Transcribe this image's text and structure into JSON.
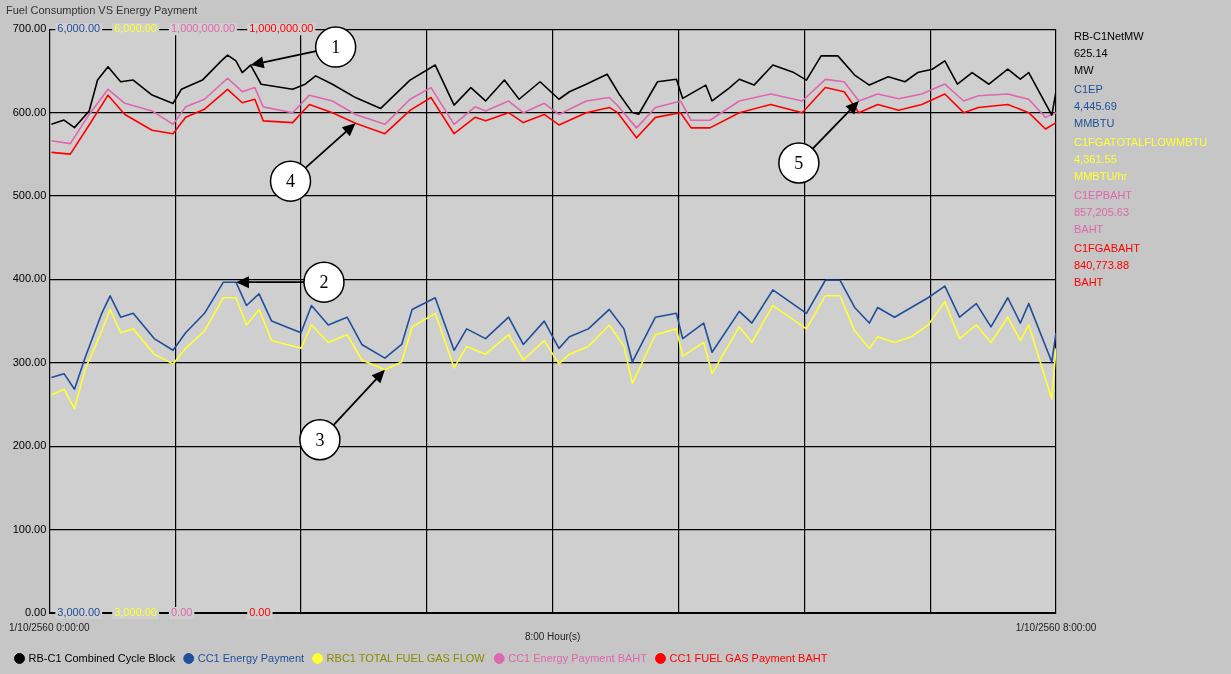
{
  "chart_data": {
    "type": "line",
    "title": "Fuel Consumption VS Energy Payment",
    "xlabel": "8:00 Hour(s)",
    "xlim": [
      "2560-10-01T00:00",
      "2560-10-01T08:00"
    ],
    "xticks": [
      {
        "value": "2560-10-01T00:00",
        "label": "1/10/2560 0:00:00"
      },
      {
        "value": "2560-10-01T01:00",
        "label": null
      },
      {
        "value": "2560-10-01T02:00",
        "label": null
      },
      {
        "value": "2560-10-01T03:00",
        "label": null
      },
      {
        "value": "2560-10-01T04:00",
        "label": null
      },
      {
        "value": "2560-10-01T05:00",
        "label": null
      },
      {
        "value": "2560-10-01T06:00",
        "label": null
      },
      {
        "value": "2560-10-01T07:00",
        "label": null
      },
      {
        "value": "2560-10-01T08:00",
        "label": "1/10/2560 8:00:00"
      }
    ],
    "ylim": [
      0,
      700
    ],
    "yticks": [
      {
        "value": 0,
        "label": "0.00"
      },
      {
        "value": 100,
        "label": "100.00"
      },
      {
        "value": 200,
        "label": "200.00"
      },
      {
        "value": 300,
        "label": "300.00"
      },
      {
        "value": 400,
        "label": "400.00"
      },
      {
        "value": 500,
        "label": "500.00"
      },
      {
        "value": 600,
        "label": "600.00"
      },
      {
        "value": 700,
        "label": "700.00"
      }
    ],
    "y2lim": [
      3000,
      6000
    ],
    "y2ticks": [
      {
        "value": 3000,
        "label": "3,000.00"
      },
      {
        "value": 6000,
        "label": "6,000.00"
      }
    ],
    "y3lim": [
      0,
      1000000
    ],
    "y3ticks": [
      {
        "value": 0,
        "label": "0.00"
      },
      {
        "value": 1000000,
        "label": "1,000,000.00"
      }
    ],
    "grid": true,
    "legend": "bottom",
    "series": [
      {
        "name": "RB-C1 Combined Cycle Block",
        "color": "#000000",
        "x": [
          "2560-10-01T00:01",
          "2560-10-01T00:07",
          "2560-10-01T00:12",
          "2560-10-01T00:19",
          "2560-10-01T00:23",
          "2560-10-01T00:28",
          "2560-10-01T00:34",
          "2560-10-01T00:40",
          "2560-10-01T00:49",
          "2560-10-01T00:59",
          "2560-10-01T01:03",
          "2560-10-01T01:13",
          "2560-10-01T01:22",
          "2560-10-01T01:25",
          "2560-10-01T01:29",
          "2560-10-01T01:32",
          "2560-10-01T01:36",
          "2560-10-01T01:41",
          "2560-10-01T01:56",
          "2560-10-01T02:02",
          "2560-10-01T02:07",
          "2560-10-01T02:15",
          "2560-10-01T02:26",
          "2560-10-01T02:38",
          "2560-10-01T02:52",
          "2560-10-01T03:04",
          "2560-10-01T03:13",
          "2560-10-01T03:21",
          "2560-10-01T03:28",
          "2560-10-01T03:37",
          "2560-10-01T03:44",
          "2560-10-01T03:54",
          "2560-10-01T04:03",
          "2560-10-01T04:08",
          "2560-10-01T04:16",
          "2560-10-01T04:26",
          "2560-10-01T04:32",
          "2560-10-01T04:38",
          "2560-10-01T04:41",
          "2560-10-01T04:50",
          "2560-10-01T04:59",
          "2560-10-01T05:02",
          "2560-10-01T05:13",
          "2560-10-01T05:16",
          "2560-10-01T05:24",
          "2560-10-01T05:29",
          "2560-10-01T05:36",
          "2560-10-01T05:45",
          "2560-10-01T05:55",
          "2560-10-01T06:01",
          "2560-10-01T06:08",
          "2560-10-01T06:16",
          "2560-10-01T06:24",
          "2560-10-01T06:31",
          "2560-10-01T06:40",
          "2560-10-01T06:48",
          "2560-10-01T06:54",
          "2560-10-01T07:01",
          "2560-10-01T07:07",
          "2560-10-01T07:13",
          "2560-10-01T07:20",
          "2560-10-01T07:28",
          "2560-10-01T07:37",
          "2560-10-01T07:43",
          "2560-10-01T07:47",
          "2560-10-01T07:58",
          "2560-10-01T08:00"
        ],
        "values": [
          586,
          591,
          582,
          602,
          639,
          655,
          637,
          639,
          621,
          611,
          628,
          639,
          662,
          669,
          662,
          648,
          657,
          634,
          628,
          634,
          644,
          634,
          618,
          605,
          639,
          657,
          609,
          630,
          614,
          639,
          616,
          637,
          616,
          625,
          634,
          646,
          621,
          600,
          598,
          637,
          640,
          617,
          633,
          614,
          629,
          640,
          633,
          657,
          648,
          639,
          668,
          668,
          645,
          633,
          643,
          637,
          648,
          652,
          662,
          634,
          648,
          634,
          652,
          640,
          648,
          597,
          625
        ]
      },
      {
        "name": "CC1 Energy Payment",
        "color": "#1f4e9a",
        "axis": "y2",
        "x": [
          "2560-10-01T00:01",
          "2560-10-01T00:07",
          "2560-10-01T00:12",
          "2560-10-01T00:17",
          "2560-10-01T00:25",
          "2560-10-01T00:29",
          "2560-10-01T00:34",
          "2560-10-01T00:40",
          "2560-10-01T00:50",
          "2560-10-01T00:59",
          "2560-10-01T01:05",
          "2560-10-01T01:14",
          "2560-10-01T01:23",
          "2560-10-01T01:29",
          "2560-10-01T01:34",
          "2560-10-01T01:40",
          "2560-10-01T01:46",
          "2560-10-01T02:00",
          "2560-10-01T02:05",
          "2560-10-01T02:13",
          "2560-10-01T02:22",
          "2560-10-01T02:29",
          "2560-10-01T02:40",
          "2560-10-01T02:48",
          "2560-10-01T02:53",
          "2560-10-01T03:04",
          "2560-10-01T03:13",
          "2560-10-01T03:19",
          "2560-10-01T03:28",
          "2560-10-01T03:39",
          "2560-10-01T03:46",
          "2560-10-01T03:56",
          "2560-10-01T04:03",
          "2560-10-01T04:08",
          "2560-10-01T04:17",
          "2560-10-01T04:27",
          "2560-10-01T04:34",
          "2560-10-01T04:38",
          "2560-10-01T04:49",
          "2560-10-01T04:59",
          "2560-10-01T05:02",
          "2560-10-01T05:12",
          "2560-10-01T05:16",
          "2560-10-01T05:29",
          "2560-10-01T05:35",
          "2560-10-01T05:45",
          "2560-10-01T05:53",
          "2560-10-01T06:01",
          "2560-10-01T06:10",
          "2560-10-01T06:17",
          "2560-10-01T06:24",
          "2560-10-01T06:31",
          "2560-10-01T06:35",
          "2560-10-01T06:43",
          "2560-10-01T06:51",
          "2560-10-01T06:59",
          "2560-10-01T07:07",
          "2560-10-01T07:14",
          "2560-10-01T07:22",
          "2560-10-01T07:29",
          "2560-10-01T07:37",
          "2560-10-01T07:43",
          "2560-10-01T07:47",
          "2560-10-01T07:58",
          "2560-10-01T08:00"
        ],
        "values": [
          4210,
          4230,
          4150,
          4310,
          4540,
          4630,
          4520,
          4540,
          4410,
          4350,
          4440,
          4540,
          4700,
          4700,
          4580,
          4640,
          4500,
          4440,
          4580,
          4480,
          4520,
          4380,
          4310,
          4380,
          4560,
          4620,
          4350,
          4460,
          4410,
          4520,
          4380,
          4500,
          4360,
          4420,
          4460,
          4560,
          4460,
          4290,
          4520,
          4540,
          4410,
          4490,
          4340,
          4550,
          4490,
          4660,
          4600,
          4540,
          4710,
          4710,
          4570,
          4490,
          4570,
          4520,
          4570,
          4620,
          4680,
          4520,
          4590,
          4470,
          4620,
          4490,
          4590,
          4290,
          4440
        ]
      },
      {
        "name": "RBC1 TOTAL FUEL GAS FLOW",
        "color": "#ffff33",
        "axis": "y2",
        "x": [
          "2560-10-01T00:01",
          "2560-10-01T00:07",
          "2560-10-01T00:12",
          "2560-10-01T00:17",
          "2560-10-01T00:25",
          "2560-10-01T00:29",
          "2560-10-01T00:34",
          "2560-10-01T00:40",
          "2560-10-01T00:50",
          "2560-10-01T00:59",
          "2560-10-01T01:05",
          "2560-10-01T01:14",
          "2560-10-01T01:23",
          "2560-10-01T01:29",
          "2560-10-01T01:34",
          "2560-10-01T01:40",
          "2560-10-01T01:46",
          "2560-10-01T02:00",
          "2560-10-01T02:05",
          "2560-10-01T02:13",
          "2560-10-01T02:22",
          "2560-10-01T02:29",
          "2560-10-01T02:40",
          "2560-10-01T02:48",
          "2560-10-01T02:53",
          "2560-10-01T03:04",
          "2560-10-01T03:13",
          "2560-10-01T03:19",
          "2560-10-01T03:28",
          "2560-10-01T03:39",
          "2560-10-01T03:46",
          "2560-10-01T03:56",
          "2560-10-01T04:03",
          "2560-10-01T04:08",
          "2560-10-01T04:17",
          "2560-10-01T04:27",
          "2560-10-01T04:34",
          "2560-10-01T04:38",
          "2560-10-01T04:49",
          "2560-10-01T04:59",
          "2560-10-01T05:02",
          "2560-10-01T05:12",
          "2560-10-01T05:16",
          "2560-10-01T05:29",
          "2560-10-01T05:35",
          "2560-10-01T05:45",
          "2560-10-01T05:53",
          "2560-10-01T06:01",
          "2560-10-01T06:10",
          "2560-10-01T06:17",
          "2560-10-01T06:24",
          "2560-10-01T06:31",
          "2560-10-01T06:35",
          "2560-10-01T06:43",
          "2560-10-01T06:51",
          "2560-10-01T06:59",
          "2560-10-01T07:07",
          "2560-10-01T07:14",
          "2560-10-01T07:22",
          "2560-10-01T07:29",
          "2560-10-01T07:37",
          "2560-10-01T07:43",
          "2560-10-01T07:47",
          "2560-10-01T07:58",
          "2560-10-01T08:00"
        ],
        "values": [
          4120,
          4150,
          4050,
          4250,
          4450,
          4560,
          4440,
          4460,
          4330,
          4280,
          4360,
          4450,
          4620,
          4620,
          4480,
          4560,
          4400,
          4360,
          4480,
          4390,
          4430,
          4300,
          4250,
          4290,
          4470,
          4540,
          4260,
          4370,
          4330,
          4430,
          4300,
          4400,
          4280,
          4330,
          4370,
          4480,
          4370,
          4180,
          4430,
          4460,
          4320,
          4390,
          4230,
          4470,
          4390,
          4580,
          4520,
          4460,
          4630,
          4630,
          4450,
          4360,
          4420,
          4390,
          4420,
          4480,
          4600,
          4410,
          4480,
          4390,
          4520,
          4400,
          4480,
          4100,
          4360
        ]
      },
      {
        "name": "CC1 Energy Payment BAHT",
        "color": "#e066ad",
        "axis": "y3",
        "x": [
          "2560-10-01T00:01",
          "2560-10-01T00:10",
          "2560-10-01T00:19",
          "2560-10-01T00:28",
          "2560-10-01T00:36",
          "2560-10-01T00:49",
          "2560-10-01T00:59",
          "2560-10-01T01:05",
          "2560-10-01T01:14",
          "2560-10-01T01:25",
          "2560-10-01T01:32",
          "2560-10-01T01:38",
          "2560-10-01T01:42",
          "2560-10-01T01:56",
          "2560-10-01T02:04",
          "2560-10-01T02:15",
          "2560-10-01T02:26",
          "2560-10-01T02:40",
          "2560-10-01T02:52",
          "2560-10-01T03:02",
          "2560-10-01T03:13",
          "2560-10-01T03:23",
          "2560-10-01T03:28",
          "2560-10-01T03:39",
          "2560-10-01T03:46",
          "2560-10-01T03:56",
          "2560-10-01T04:03",
          "2560-10-01T04:16",
          "2560-10-01T04:27",
          "2560-10-01T04:31",
          "2560-10-01T04:40",
          "2560-10-01T04:49",
          "2560-10-01T05:01",
          "2560-10-01T05:06",
          "2560-10-01T05:15",
          "2560-10-01T05:29",
          "2560-10-01T05:44",
          "2560-10-01T05:59",
          "2560-10-01T06:10",
          "2560-10-01T06:19",
          "2560-10-01T06:26",
          "2560-10-01T06:35",
          "2560-10-01T06:45",
          "2560-10-01T06:56",
          "2560-10-01T07:07",
          "2560-10-01T07:16",
          "2560-10-01T07:23",
          "2560-10-01T07:37",
          "2560-10-01T07:47",
          "2560-10-01T07:55",
          "2560-10-01T08:00"
        ],
        "values": [
          809000,
          804000,
          854000,
          897000,
          873000,
          860000,
          837000,
          867000,
          880000,
          916000,
          893000,
          900000,
          867000,
          857000,
          887000,
          877000,
          854000,
          837000,
          880000,
          900000,
          837000,
          867000,
          860000,
          877000,
          857000,
          873000,
          854000,
          877000,
          883000,
          869000,
          831000,
          866000,
          877000,
          844000,
          844000,
          877000,
          889000,
          877000,
          914000,
          910000,
          877000,
          889000,
          881000,
          889000,
          906000,
          877000,
          886000,
          889000,
          880000,
          849000,
          857000
        ]
      },
      {
        "name": "CC1 FUEL GAS Payment BAHT",
        "color": "#ff0000",
        "axis": "y3",
        "x": [
          "2560-10-01T00:01",
          "2560-10-01T00:10",
          "2560-10-01T00:19",
          "2560-10-01T00:28",
          "2560-10-01T00:36",
          "2560-10-01T00:49",
          "2560-10-01T00:59",
          "2560-10-01T01:05",
          "2560-10-01T01:14",
          "2560-10-01T01:25",
          "2560-10-01T01:32",
          "2560-10-01T01:38",
          "2560-10-01T01:42",
          "2560-10-01T01:56",
          "2560-10-01T02:04",
          "2560-10-01T02:15",
          "2560-10-01T02:26",
          "2560-10-01T02:40",
          "2560-10-01T02:52",
          "2560-10-01T03:02",
          "2560-10-01T03:13",
          "2560-10-01T03:23",
          "2560-10-01T03:28",
          "2560-10-01T03:39",
          "2560-10-01T03:46",
          "2560-10-01T03:56",
          "2560-10-01T04:03",
          "2560-10-01T04:16",
          "2560-10-01T04:27",
          "2560-10-01T04:31",
          "2560-10-01T04:40",
          "2560-10-01T04:49",
          "2560-10-01T05:01",
          "2560-10-01T05:06",
          "2560-10-01T05:15",
          "2560-10-01T05:29",
          "2560-10-01T05:44",
          "2560-10-01T05:59",
          "2560-10-01T06:10",
          "2560-10-01T06:19",
          "2560-10-01T06:26",
          "2560-10-01T06:35",
          "2560-10-01T06:45",
          "2560-10-01T06:56",
          "2560-10-01T07:07",
          "2560-10-01T07:16",
          "2560-10-01T07:23",
          "2560-10-01T07:37",
          "2560-10-01T07:47",
          "2560-10-01T07:55",
          "2560-10-01T08:00"
        ],
        "values": [
          789000,
          786000,
          836000,
          887000,
          854000,
          827000,
          821000,
          849000,
          863000,
          897000,
          874000,
          880000,
          843000,
          840000,
          871000,
          857000,
          839000,
          821000,
          861000,
          883000,
          821000,
          849000,
          843000,
          857000,
          840000,
          854000,
          836000,
          857000,
          866000,
          857000,
          814000,
          849000,
          857000,
          831000,
          831000,
          857000,
          871000,
          857000,
          900000,
          893000,
          857000,
          871000,
          861000,
          871000,
          889000,
          857000,
          866000,
          871000,
          857000,
          829000,
          840000
        ]
      }
    ],
    "annotations": [
      "RB-C1NetMW",
      "625.14",
      "MW",
      "C1EP",
      "4,445.69",
      "MMBTU",
      "C1FGATOTALFLOWMBTU",
      "4,361.55",
      "MMBTU/hr",
      "C1EPBAHT",
      "857,205.63",
      "BAHT",
      "C1FGABAHT",
      "840,773.88",
      "BAHT",
      "1",
      "2",
      "3",
      "4",
      "5"
    ]
  }
}
